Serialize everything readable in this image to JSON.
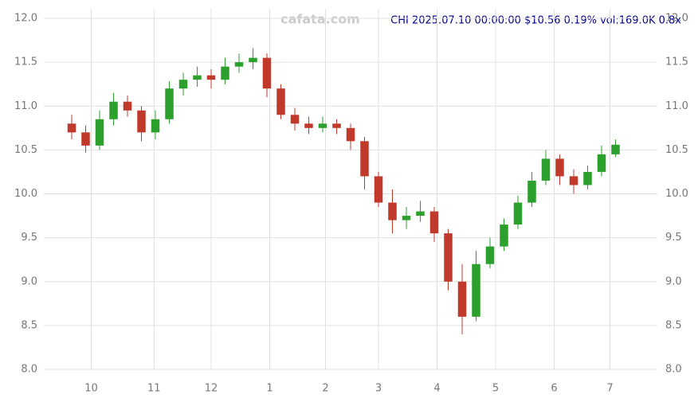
{
  "chart_data": {
    "type": "candlestick",
    "title": "CHI 2025.07.10 00:00:00 $10.56 0.19% vol:169.0K 0.8x",
    "watermark": "cafata.com",
    "x": [
      0,
      1,
      2,
      3,
      4,
      5,
      6,
      7,
      8,
      9,
      10,
      11,
      12,
      13,
      14,
      15,
      16,
      17,
      18,
      19,
      20,
      21,
      22,
      23,
      24,
      25,
      26,
      27,
      28,
      29,
      30,
      31,
      32,
      33,
      34,
      35,
      36,
      37,
      38,
      39
    ],
    "open": [
      10.8,
      10.7,
      10.55,
      10.85,
      11.05,
      10.95,
      10.7,
      10.85,
      11.2,
      11.3,
      11.35,
      11.3,
      11.45,
      11.5,
      11.55,
      11.2,
      10.9,
      10.8,
      10.75,
      10.8,
      10.75,
      10.6,
      10.2,
      9.9,
      9.7,
      9.75,
      9.8,
      9.55,
      9.0,
      8.6,
      9.2,
      9.4,
      9.65,
      9.9,
      10.15,
      10.4,
      10.2,
      10.1,
      10.25,
      10.45
    ],
    "high": [
      10.9,
      10.78,
      10.95,
      11.15,
      11.12,
      11.0,
      10.95,
      11.28,
      11.38,
      11.45,
      11.42,
      11.55,
      11.6,
      11.66,
      11.6,
      11.25,
      10.98,
      10.88,
      10.88,
      10.85,
      10.8,
      10.65,
      10.25,
      10.05,
      9.85,
      9.92,
      9.85,
      9.6,
      9.2,
      9.35,
      9.5,
      9.72,
      9.98,
      10.25,
      10.5,
      10.45,
      10.28,
      10.32,
      10.55,
      10.62
    ],
    "low": [
      10.62,
      10.47,
      10.5,
      10.78,
      10.88,
      10.6,
      10.62,
      10.8,
      11.12,
      11.22,
      11.2,
      11.25,
      11.38,
      11.42,
      11.1,
      10.85,
      10.72,
      10.68,
      10.7,
      10.68,
      10.5,
      10.05,
      9.85,
      9.55,
      9.6,
      9.68,
      9.45,
      8.9,
      8.4,
      8.55,
      9.15,
      9.35,
      9.6,
      9.85,
      10.1,
      10.1,
      10.0,
      10.05,
      10.2,
      10.42
    ],
    "close": [
      10.7,
      10.55,
      10.85,
      11.05,
      10.95,
      10.7,
      10.85,
      11.2,
      11.3,
      11.35,
      11.3,
      11.45,
      11.5,
      11.55,
      11.2,
      10.9,
      10.8,
      10.75,
      10.8,
      10.75,
      10.6,
      10.2,
      9.9,
      9.7,
      9.75,
      9.8,
      9.55,
      9.0,
      8.6,
      9.2,
      9.4,
      9.65,
      9.9,
      10.15,
      10.4,
      10.2,
      10.1,
      10.25,
      10.45,
      10.56
    ],
    "up_color": "#2ca02c",
    "down_color": "#c0392b",
    "xlim": [
      -2,
      42
    ],
    "xticks": [
      {
        "value": 1.4,
        "label": "10"
      },
      {
        "value": 5.9,
        "label": "11"
      },
      {
        "value": 10.0,
        "label": "12"
      },
      {
        "value": 14.2,
        "label": "1"
      },
      {
        "value": 18.2,
        "label": "2"
      },
      {
        "value": 22.0,
        "label": "3"
      },
      {
        "value": 26.2,
        "label": "4"
      },
      {
        "value": 30.4,
        "label": "5"
      },
      {
        "value": 34.6,
        "label": "6"
      },
      {
        "value": 38.6,
        "label": "7"
      }
    ],
    "ylim": [
      8.0,
      12.0
    ],
    "yticks": [
      {
        "value": 8.0,
        "label": "8.0"
      },
      {
        "value": 8.5,
        "label": "8.5"
      },
      {
        "value": 9.0,
        "label": "9.0"
      },
      {
        "value": 9.5,
        "label": "9.5"
      },
      {
        "value": 10.0,
        "label": "10.0"
      },
      {
        "value": 10.5,
        "label": "10.5"
      },
      {
        "value": 11.0,
        "label": "11.0"
      },
      {
        "value": 11.5,
        "label": "11.5"
      },
      {
        "value": 12.0,
        "label": "12.0"
      }
    ],
    "grid": true
  }
}
